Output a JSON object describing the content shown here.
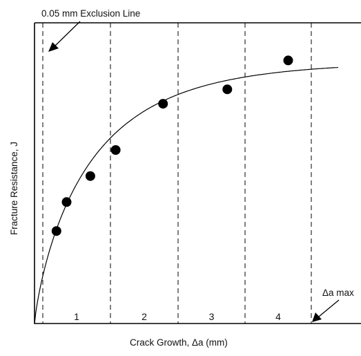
{
  "chart_data": {
    "type": "scatter",
    "xlabel": "Crack Growth,  Δa  (mm)",
    "ylabel": "Fracture Resistance,  J",
    "grid": false,
    "points": [
      {
        "x": 0.13,
        "y": 0.32
      },
      {
        "x": 0.19,
        "y": 0.42
      },
      {
        "x": 0.33,
        "y": 0.51
      },
      {
        "x": 0.48,
        "y": 0.6
      },
      {
        "x": 0.76,
        "y": 0.76
      },
      {
        "x": 1.14,
        "y": 0.81
      },
      {
        "x": 1.5,
        "y": 0.91
      }
    ],
    "zones": [
      "1",
      "2",
      "3",
      "4"
    ],
    "annotations": {
      "exclusion_line": "0.05 mm Exclusion Line",
      "max_line": "Δa max"
    }
  }
}
